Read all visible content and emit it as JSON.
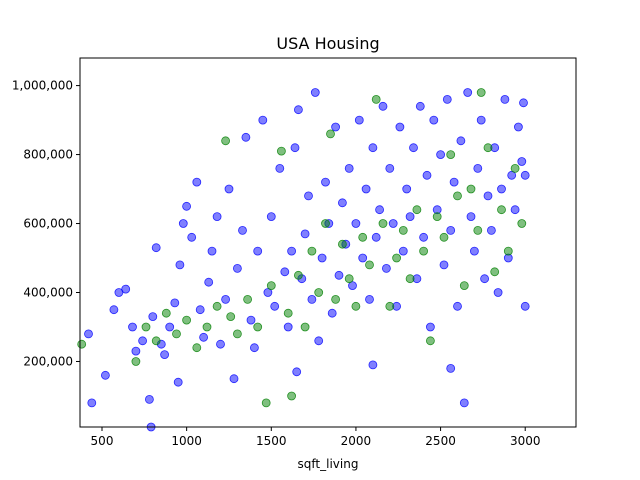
{
  "chart_data": {
    "type": "scatter",
    "title": "USA Housing",
    "xlabel": "sqft_living",
    "ylabel": "",
    "xlim": [
      370,
      3300
    ],
    "ylim": [
      10000,
      1080000
    ],
    "x_ticks": [
      500,
      1000,
      1500,
      2000,
      2500,
      3000
    ],
    "x_tick_labels": [
      "500",
      "1000",
      "1500",
      "2000",
      "2500",
      "3000"
    ],
    "y_ticks": [
      200000,
      400000,
      600000,
      800000,
      1000000
    ],
    "y_tick_labels": [
      "200,000",
      "400,000",
      "600,000",
      "800,000",
      "1,000,000"
    ],
    "grid": false,
    "legend": "none",
    "marker_alpha": 0.5,
    "series": [
      {
        "color": "#0000ff",
        "points": [
          [
            440,
            80000
          ],
          [
            420,
            280000
          ],
          [
            520,
            160000
          ],
          [
            570,
            350000
          ],
          [
            600,
            400000
          ],
          [
            640,
            410000
          ],
          [
            680,
            300000
          ],
          [
            700,
            230000
          ],
          [
            740,
            260000
          ],
          [
            780,
            90000
          ],
          [
            790,
            10000
          ],
          [
            800,
            330000
          ],
          [
            820,
            530000
          ],
          [
            850,
            250000
          ],
          [
            870,
            220000
          ],
          [
            900,
            300000
          ],
          [
            930,
            370000
          ],
          [
            950,
            140000
          ],
          [
            960,
            480000
          ],
          [
            980,
            600000
          ],
          [
            1000,
            650000
          ],
          [
            1030,
            560000
          ],
          [
            1060,
            720000
          ],
          [
            1080,
            350000
          ],
          [
            1100,
            270000
          ],
          [
            1130,
            430000
          ],
          [
            1150,
            520000
          ],
          [
            1180,
            620000
          ],
          [
            1200,
            250000
          ],
          [
            1230,
            380000
          ],
          [
            1250,
            700000
          ],
          [
            1280,
            150000
          ],
          [
            1300,
            470000
          ],
          [
            1330,
            580000
          ],
          [
            1350,
            850000
          ],
          [
            1380,
            320000
          ],
          [
            1400,
            240000
          ],
          [
            1420,
            520000
          ],
          [
            1450,
            900000
          ],
          [
            1480,
            400000
          ],
          [
            1500,
            620000
          ],
          [
            1520,
            360000
          ],
          [
            1550,
            760000
          ],
          [
            1580,
            460000
          ],
          [
            1600,
            300000
          ],
          [
            1620,
            520000
          ],
          [
            1640,
            820000
          ],
          [
            1660,
            930000
          ],
          [
            1680,
            440000
          ],
          [
            1700,
            570000
          ],
          [
            1720,
            680000
          ],
          [
            1740,
            380000
          ],
          [
            1760,
            980000
          ],
          [
            1780,
            260000
          ],
          [
            1800,
            500000
          ],
          [
            1820,
            720000
          ],
          [
            1840,
            600000
          ],
          [
            1860,
            340000
          ],
          [
            1880,
            880000
          ],
          [
            1900,
            450000
          ],
          [
            1920,
            660000
          ],
          [
            1940,
            540000
          ],
          [
            1960,
            760000
          ],
          [
            1980,
            420000
          ],
          [
            2000,
            600000
          ],
          [
            2020,
            900000
          ],
          [
            2040,
            500000
          ],
          [
            2060,
            700000
          ],
          [
            2080,
            380000
          ],
          [
            2100,
            820000
          ],
          [
            2120,
            560000
          ],
          [
            2140,
            640000
          ],
          [
            2160,
            940000
          ],
          [
            2180,
            470000
          ],
          [
            2200,
            760000
          ],
          [
            2220,
            600000
          ],
          [
            2240,
            360000
          ],
          [
            2260,
            880000
          ],
          [
            2280,
            520000
          ],
          [
            2300,
            700000
          ],
          [
            2320,
            620000
          ],
          [
            2340,
            820000
          ],
          [
            2360,
            440000
          ],
          [
            2380,
            940000
          ],
          [
            2400,
            560000
          ],
          [
            2420,
            740000
          ],
          [
            2440,
            300000
          ],
          [
            2460,
            900000
          ],
          [
            2480,
            640000
          ],
          [
            2500,
            800000
          ],
          [
            2520,
            480000
          ],
          [
            2540,
            960000
          ],
          [
            2560,
            580000
          ],
          [
            2580,
            720000
          ],
          [
            2600,
            360000
          ],
          [
            2620,
            840000
          ],
          [
            2640,
            80000
          ],
          [
            2660,
            980000
          ],
          [
            2680,
            620000
          ],
          [
            2700,
            520000
          ],
          [
            2720,
            760000
          ],
          [
            2740,
            900000
          ],
          [
            2760,
            440000
          ],
          [
            2780,
            680000
          ],
          [
            2800,
            580000
          ],
          [
            2820,
            820000
          ],
          [
            2840,
            400000
          ],
          [
            2860,
            700000
          ],
          [
            2880,
            960000
          ],
          [
            2900,
            500000
          ],
          [
            2920,
            740000
          ],
          [
            2940,
            640000
          ],
          [
            2960,
            880000
          ],
          [
            2980,
            780000
          ],
          [
            3000,
            360000
          ],
          [
            3000,
            740000
          ],
          [
            2990,
            950000
          ],
          [
            2560,
            180000
          ],
          [
            2100,
            190000
          ],
          [
            1650,
            170000
          ]
        ]
      },
      {
        "color": "#008000",
        "points": [
          [
            380,
            250000
          ],
          [
            700,
            200000
          ],
          [
            760,
            300000
          ],
          [
            820,
            260000
          ],
          [
            880,
            340000
          ],
          [
            940,
            280000
          ],
          [
            1000,
            320000
          ],
          [
            1060,
            240000
          ],
          [
            1120,
            300000
          ],
          [
            1180,
            360000
          ],
          [
            1230,
            840000
          ],
          [
            1260,
            330000
          ],
          [
            1300,
            280000
          ],
          [
            1360,
            380000
          ],
          [
            1420,
            300000
          ],
          [
            1470,
            80000
          ],
          [
            1500,
            420000
          ],
          [
            1560,
            810000
          ],
          [
            1600,
            340000
          ],
          [
            1620,
            100000
          ],
          [
            1660,
            450000
          ],
          [
            1700,
            300000
          ],
          [
            1740,
            520000
          ],
          [
            1780,
            400000
          ],
          [
            1820,
            600000
          ],
          [
            1850,
            860000
          ],
          [
            1880,
            380000
          ],
          [
            1920,
            540000
          ],
          [
            1960,
            440000
          ],
          [
            2000,
            360000
          ],
          [
            2040,
            560000
          ],
          [
            2080,
            480000
          ],
          [
            2120,
            960000
          ],
          [
            2160,
            600000
          ],
          [
            2200,
            360000
          ],
          [
            2240,
            500000
          ],
          [
            2280,
            580000
          ],
          [
            2320,
            440000
          ],
          [
            2360,
            640000
          ],
          [
            2400,
            520000
          ],
          [
            2440,
            260000
          ],
          [
            2480,
            620000
          ],
          [
            2520,
            560000
          ],
          [
            2560,
            800000
          ],
          [
            2600,
            680000
          ],
          [
            2640,
            420000
          ],
          [
            2680,
            700000
          ],
          [
            2720,
            580000
          ],
          [
            2740,
            980000
          ],
          [
            2780,
            820000
          ],
          [
            2820,
            460000
          ],
          [
            2860,
            640000
          ],
          [
            2900,
            520000
          ],
          [
            2940,
            760000
          ],
          [
            2980,
            600000
          ]
        ]
      }
    ]
  }
}
